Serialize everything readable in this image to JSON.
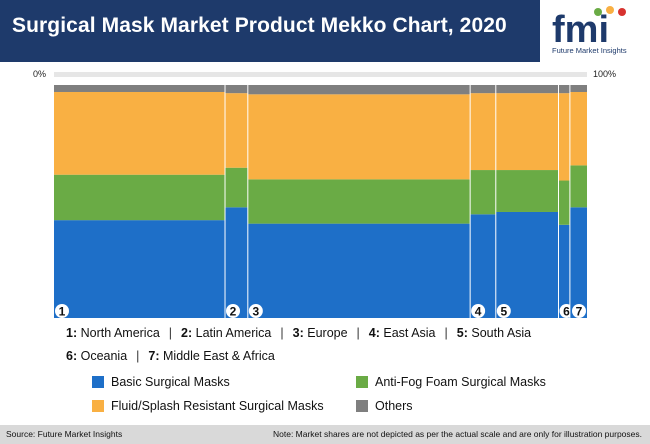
{
  "header": {
    "title": "Surgical Mask Market Product Mekko Chart, 2020"
  },
  "logo": {
    "text": "fmi",
    "subtitle": "Future Market Insights"
  },
  "axis": {
    "left_label": "0%",
    "right_label": "100%"
  },
  "colors": {
    "basic": "#1e6fc8",
    "antifog": "#6aab45",
    "fluid": "#f9b043",
    "others": "#7f7f7f",
    "header": "#1e3a6b"
  },
  "chart_data": {
    "type": "mekko",
    "columns": [
      {
        "id": "1",
        "name": "North America",
        "width": 30,
        "values": {
          "basic": 42.0,
          "antifog": 19.5,
          "fluid": 35.5,
          "others": 3.0
        }
      },
      {
        "id": "2",
        "name": "Latin America",
        "width": 4,
        "values": {
          "basic": 47.5,
          "antifog": 17.0,
          "fluid": 32.0,
          "others": 3.5
        }
      },
      {
        "id": "3",
        "name": "Europe",
        "width": 39,
        "values": {
          "basic": 40.5,
          "antifog": 19.0,
          "fluid": 36.5,
          "others": 4.0
        }
      },
      {
        "id": "4",
        "name": "East Asia",
        "width": 4.5,
        "values": {
          "basic": 44.5,
          "antifog": 19.0,
          "fluid": 33.0,
          "others": 3.5
        }
      },
      {
        "id": "5",
        "name": "South Asia",
        "width": 11,
        "values": {
          "basic": 45.5,
          "antifog": 18.0,
          "fluid": 33.0,
          "others": 3.5
        }
      },
      {
        "id": "6",
        "name": "Oceania",
        "width": 2,
        "values": {
          "basic": 40.0,
          "antifog": 19.0,
          "fluid": 37.5,
          "others": 3.5
        }
      },
      {
        "id": "7",
        "name": "Middle East & Africa",
        "width": 3,
        "values": {
          "basic": 47.5,
          "antifog": 18.0,
          "fluid": 31.5,
          "others": 3.0
        }
      }
    ],
    "segments": [
      {
        "key": "basic",
        "name": "Basic Surgical Masks"
      },
      {
        "key": "antifog",
        "name": "Anti-Fog Foam Surgical Masks"
      },
      {
        "key": "fluid",
        "name": "Fluid/Splash Resistant Surgical Masks"
      },
      {
        "key": "others",
        "name": "Others"
      }
    ]
  },
  "legend": {
    "regions_row1": [
      {
        "num": "1:",
        "name": "North America"
      },
      {
        "num": "2:",
        "name": "Latin America"
      },
      {
        "num": "3:",
        "name": "Europe"
      },
      {
        "num": "4:",
        "name": "East Asia"
      },
      {
        "num": "5:",
        "name": "South Asia"
      }
    ],
    "regions_row2": [
      {
        "num": "6:",
        "name": "Oceania"
      },
      {
        "num": "7:",
        "name": "Middle East & Africa"
      }
    ],
    "separator": "|"
  },
  "footer": {
    "source": "Source: Future Market Insights",
    "note": "Note: Market shares are not depicted as per the actual scale and are only for illustration purposes."
  }
}
